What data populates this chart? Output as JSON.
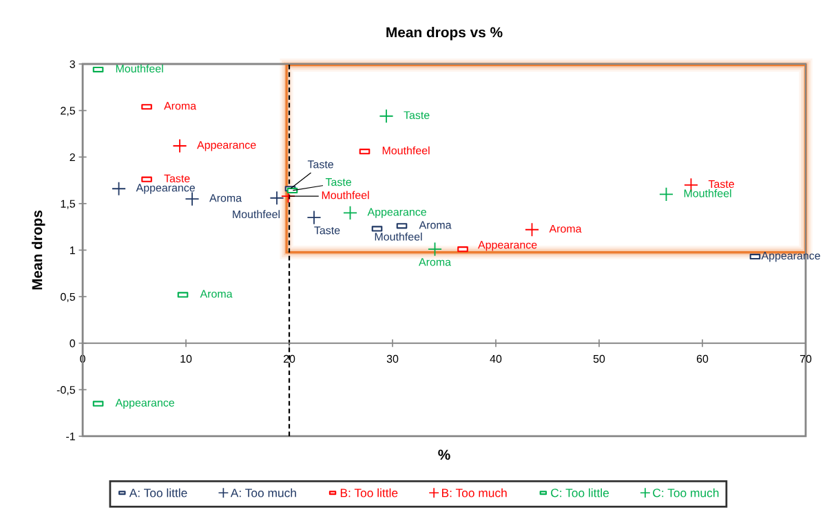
{
  "chart_data": {
    "type": "scatter",
    "title": "Mean drops vs %",
    "xlabel": "%",
    "ylabel": "Mean drops",
    "xlim": [
      0,
      70
    ],
    "xticks": [
      0,
      10,
      20,
      30,
      40,
      50,
      60,
      70
    ],
    "ylim": [
      -1,
      3
    ],
    "yticks": [
      -1,
      {
        "value": -0.5,
        "label": "-0,5"
      },
      0,
      {
        "value": 0.5,
        "label": "0,5"
      },
      1,
      {
        "value": 1.5,
        "label": "1,5"
      },
      2,
      {
        "value": 2.5,
        "label": "2,5"
      },
      3
    ],
    "grid": false,
    "legend": "bottom",
    "ref_lines": [
      {
        "axis": "x",
        "value": 20,
        "color": "#000000",
        "line_style": "dashed"
      }
    ],
    "series": [
      {
        "name": "A: Too little",
        "color": "#203864",
        "marker": "square",
        "x": [
          20.1,
          30.9,
          28.5,
          65.1
        ],
        "values": [
          1.66,
          1.26,
          1.23,
          0.93
        ],
        "value_labels": [
          "Taste",
          "Aroma",
          "Mouthfeel",
          "Appearance"
        ]
      },
      {
        "name": "A: Too much",
        "color": "#203864",
        "marker": "cross",
        "x": [
          22.4,
          10.6,
          18.8,
          3.5
        ],
        "values": [
          1.35,
          1.55,
          1.56,
          1.66
        ],
        "value_labels": [
          "Taste",
          "Aroma",
          "Mouthfeel",
          "Appearance"
        ]
      },
      {
        "name": "B: Too little",
        "color": "#ff0000",
        "marker": "square",
        "x": [
          6.2,
          6.2,
          27.3,
          36.8
        ],
        "values": [
          1.76,
          2.54,
          2.06,
          1.01
        ],
        "value_labels": [
          "Taste",
          "Aroma",
          "Mouthfeel",
          "Appearance"
        ]
      },
      {
        "name": "B: Too much",
        "color": "#ff0000",
        "marker": "cross",
        "x": [
          58.9,
          43.5,
          19.9,
          9.4
        ],
        "values": [
          1.7,
          1.22,
          1.58,
          2.12
        ],
        "value_labels": [
          "Taste",
          "Aroma",
          "Mouthfeel",
          "Appearance"
        ]
      },
      {
        "name": "C: Too little",
        "color": "#00b050",
        "marker": "square",
        "x": [
          20.3,
          9.7,
          1.5,
          1.5
        ],
        "values": [
          1.64,
          0.52,
          2.94,
          -0.65
        ],
        "value_labels": [
          "Taste",
          "Aroma",
          "Mouthfeel",
          "Appearance"
        ]
      },
      {
        "name": "C: Too much",
        "color": "#00b050",
        "marker": "cross",
        "x": [
          29.4,
          34.1,
          56.5,
          25.9
        ],
        "values": [
          2.44,
          1.01,
          1.6,
          1.4
        ],
        "value_labels": [
          "Taste",
          "Aroma",
          "Mouthfeel",
          "Appearance"
        ]
      }
    ]
  }
}
